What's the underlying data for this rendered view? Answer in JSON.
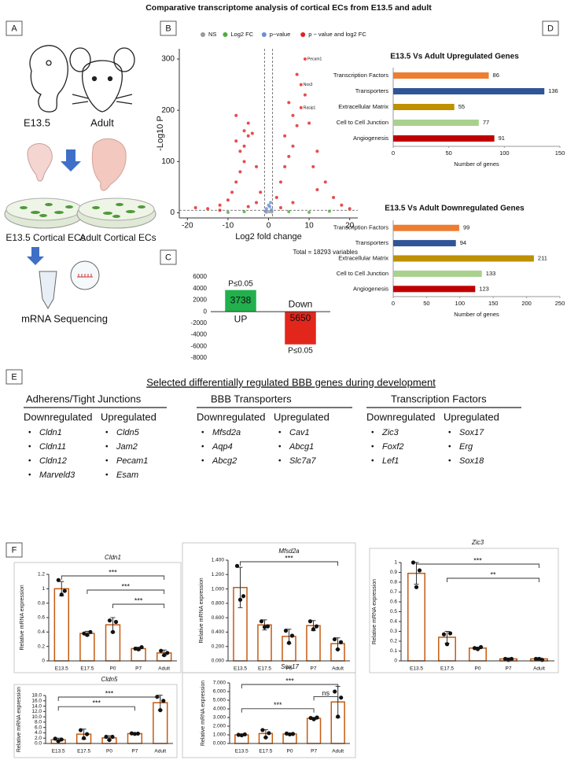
{
  "title": "Comparative transcriptome analysis of  cortical ECs from E13.5 and adult",
  "panel_labels": [
    "A",
    "B",
    "C",
    "D",
    "E",
    "F"
  ],
  "panel_a": {
    "labels": [
      "E13.5",
      "Adult",
      "E13.5 Cortical ECs",
      "Adult Cortical ECs",
      "mRNA Sequencing"
    ]
  },
  "panel_e": {
    "title": "Selected differentially regulated BBB genes during development",
    "groups": [
      {
        "heading": "Adherens/Tight Junctions",
        "down_label": "Downregulated",
        "up_label": "Upregulated",
        "down": [
          "Cldn1",
          "Cldn11",
          "Cldn12",
          "Marveld3"
        ],
        "up": [
          "Cldn5",
          "Jam2",
          "Pecam1",
          "Esam"
        ]
      },
      {
        "heading": "BBB Transporters",
        "down_label": "Downregulated",
        "up_label": "Upregulated",
        "down": [
          "Mfsd2a",
          "Aqp4",
          "Abcg2"
        ],
        "up": [
          "Cav1",
          "Abcg1",
          "Slc7a7"
        ]
      },
      {
        "heading": "Transcription Factors",
        "down_label": "Downregulated",
        "up_label": "Upregulated",
        "down": [
          "Zic3",
          "Foxf2",
          "Lef1"
        ],
        "up": [
          "Sox17",
          "Erg",
          "Sox18"
        ]
      }
    ]
  },
  "chart_data": [
    {
      "type": "scatter",
      "xlabel": "Log2 fold change",
      "ylabel": "-Log10 P",
      "footnote": "Total = 18293 variables",
      "xlim": [
        -22,
        22
      ],
      "xticks": [
        -20,
        -10,
        0,
        10,
        20
      ],
      "ylim": [
        -10,
        320
      ],
      "yticks": [
        0,
        100,
        200,
        300
      ],
      "vlines": [
        -1,
        1
      ],
      "hline": 5,
      "series": [
        {
          "name": "NS",
          "color": "#999999",
          "x": [
            -0.5,
            0.2,
            0.8
          ],
          "y": [
            1,
            2,
            1.5
          ]
        },
        {
          "name": "Log2 FC",
          "color": "#4cae3a",
          "x": [
            -6,
            -10,
            5,
            10,
            15
          ],
          "y": [
            2,
            1,
            2,
            1,
            3
          ]
        },
        {
          "name": "p−value",
          "color": "#6a8fd6",
          "x": [
            -0.8,
            -0.5,
            0.3,
            0.7,
            0,
            0.5
          ],
          "y": [
            3,
            8,
            12,
            6,
            15,
            20
          ]
        },
        {
          "name": "p − value and log2 FC",
          "color": "#e02020",
          "x": [
            -18,
            -15,
            -12,
            -10,
            -9,
            -8,
            -7,
            -6,
            -7,
            -6,
            -8,
            -5,
            -6,
            -5,
            -8,
            -4,
            -3,
            -2,
            -3,
            -5,
            -12,
            2,
            3,
            4,
            5,
            6,
            4,
            7,
            6,
            8,
            5,
            9,
            8,
            7,
            9,
            10,
            12,
            11,
            14,
            16,
            18,
            20,
            3,
            6,
            12
          ],
          "y": [
            10,
            8,
            15,
            25,
            40,
            60,
            80,
            100,
            120,
            130,
            140,
            150,
            160,
            175,
            190,
            155,
            90,
            40,
            20,
            12,
            5,
            30,
            60,
            90,
            110,
            130,
            150,
            170,
            190,
            205,
            215,
            230,
            250,
            270,
            300,
            175,
            120,
            90,
            60,
            30,
            15,
            8,
            10,
            20,
            45
          ]
        }
      ],
      "annotations": [
        {
          "text": "Pecam1",
          "x": 9,
          "y": 300
        },
        {
          "text": "Nos3",
          "x": 8,
          "y": 250
        },
        {
          "text": "Rasip1",
          "x": 8,
          "y": 205
        }
      ]
    },
    {
      "type": "bar",
      "categories": [
        "UP",
        "Down"
      ],
      "values": [
        3738,
        -5650
      ],
      "value_labels": [
        "3738",
        "5650"
      ],
      "colors": [
        "#22b04c",
        "#e3261c"
      ],
      "annotations": [
        "P≤0.05",
        "P≤0.05"
      ],
      "ylim": [
        -8000,
        6000
      ],
      "yticks": [
        -8000,
        -6000,
        -4000,
        -2000,
        0,
        2000,
        4000,
        6000
      ]
    },
    {
      "type": "barh",
      "title": "E13.5 Vs Adult Upregulated Genes",
      "xlabel": "Number of genes",
      "categories": [
        "Transcription Factors",
        "Transporters",
        "Extracellular Matrix",
        "Cell to Cell Junction",
        "Angiogenesis"
      ],
      "values": [
        86,
        136,
        55,
        77,
        91
      ],
      "colors": [
        "#ed7d31",
        "#2f5597",
        "#bf9000",
        "#a9d18e",
        "#c00000"
      ],
      "xlim": [
        0,
        150
      ],
      "xticks": [
        0,
        50,
        100,
        150
      ]
    },
    {
      "type": "barh",
      "title": "E13.5 Vs Adult Downregulated Genes",
      "xlabel": "Number of genes",
      "categories": [
        "Transcription Factors",
        "Transporters",
        "Extracellular Matrix",
        "Cell to Cell Junction",
        "Angiogenesis"
      ],
      "values": [
        99,
        94,
        211,
        133,
        123
      ],
      "colors": [
        "#ed7d31",
        "#2f5597",
        "#bf9000",
        "#a9d18e",
        "#c00000"
      ],
      "xlim": [
        0,
        250
      ],
      "xticks": [
        0,
        50,
        100,
        150,
        200,
        250
      ]
    },
    {
      "type": "bar",
      "title": "Cldn1",
      "ylabel": "Relative mRNA expression",
      "color": "#c55a11",
      "categories": [
        "E13.5",
        "E17.5",
        "P0",
        "P7",
        "Adult"
      ],
      "values": [
        1.0,
        0.38,
        0.5,
        0.17,
        0.11
      ],
      "errors": [
        0.1,
        0.03,
        0.1,
        0.02,
        0.04
      ],
      "points": [
        [
          1.12,
          0.92,
          0.97
        ],
        [
          0.38,
          0.36,
          0.4
        ],
        [
          0.56,
          0.4,
          0.54
        ],
        [
          0.17,
          0.16,
          0.19
        ],
        [
          0.14,
          0.08,
          0.11
        ]
      ],
      "ylim": [
        0,
        1.2
      ],
      "yticks": [
        0,
        0.2,
        0.4,
        0.6,
        0.8,
        1,
        1.2
      ],
      "brackets": [
        {
          "label": "***",
          "from": 0,
          "to": 4
        },
        {
          "label": "***",
          "from": 1,
          "to": 4
        },
        {
          "label": "***",
          "from": 2,
          "to": 4
        }
      ]
    },
    {
      "type": "bar",
      "title": "Mfsd2a",
      "ylabel": "Relative mRNA expression",
      "color": "#c55a11",
      "categories": [
        "E13.5",
        "E17.5",
        "P0",
        "P7",
        "Adult"
      ],
      "values": [
        1.02,
        0.5,
        0.34,
        0.49,
        0.24
      ],
      "errors": [
        0.28,
        0.07,
        0.1,
        0.07,
        0.08
      ],
      "points": [
        [
          1.32,
          0.85,
          0.9
        ],
        [
          0.55,
          0.47,
          0.48
        ],
        [
          0.42,
          0.25,
          0.35
        ],
        [
          0.55,
          0.44,
          0.48
        ],
        [
          0.3,
          0.16,
          0.26
        ]
      ],
      "ylim": [
        0,
        1.4
      ],
      "yticks": [
        {
          "value": 0,
          "label": "0.000"
        },
        {
          "value": 0.2,
          "label": "0.200"
        },
        {
          "value": 0.4,
          "label": "0.400"
        },
        {
          "value": 0.6,
          "label": "0.600"
        },
        {
          "value": 0.8,
          "label": "0.800"
        },
        {
          "value": 1,
          "label": "1.000"
        },
        {
          "value": 1.2,
          "label": "1.200"
        },
        {
          "value": 1.4,
          "label": "1.400"
        }
      ],
      "brackets": [
        {
          "label": "***",
          "from": 0,
          "to": 4
        }
      ]
    },
    {
      "type": "bar",
      "title": "Zic3",
      "ylabel": "Relative mRNA expression",
      "color": "#c55a11",
      "categories": [
        "E13.5",
        "E17.5",
        "P0",
        "P7",
        "Adult"
      ],
      "values": [
        0.89,
        0.24,
        0.13,
        0.02,
        0.02
      ],
      "errors": [
        0.11,
        0.06,
        0.01,
        0.01,
        0.01
      ],
      "points": [
        [
          1.0,
          0.75,
          0.92
        ],
        [
          0.27,
          0.17,
          0.28
        ],
        [
          0.13,
          0.12,
          0.14
        ],
        [
          0.02,
          0.01,
          0.02
        ],
        [
          0.02,
          0.02,
          0.01
        ]
      ],
      "ylim": [
        0,
        1
      ],
      "yticks": [
        0,
        0.1,
        0.2,
        0.3,
        0.4,
        0.5,
        0.6,
        0.7,
        0.8,
        0.9,
        1
      ],
      "brackets": [
        {
          "label": "***",
          "from": 0,
          "to": 4
        },
        {
          "label": "**",
          "from": 1,
          "to": 4
        }
      ]
    },
    {
      "type": "bar",
      "title": "Cldn5",
      "ylabel": "Relative mRNA expression",
      "color": "#c55a11",
      "categories": [
        "E13.5",
        "E17.5",
        "P0",
        "P7",
        "Adult"
      ],
      "values": [
        1.4,
        3.5,
        2.1,
        3.7,
        15.3
      ],
      "errors": [
        0.6,
        1.9,
        0.8,
        0.2,
        2.8
      ],
      "points": [
        [
          1.8,
          0.9,
          1.5
        ],
        [
          5.0,
          2.0,
          3.5
        ],
        [
          2.5,
          1.3,
          2.5
        ],
        [
          3.8,
          3.6,
          3.7
        ],
        [
          17.5,
          12.5,
          16
        ]
      ],
      "ylim": [
        0,
        18
      ],
      "yticks": [
        {
          "value": 0,
          "label": "0.0"
        },
        {
          "value": 2,
          "label": "2.0"
        },
        {
          "value": 4,
          "label": "4.0"
        },
        {
          "value": 6,
          "label": "6.0"
        },
        {
          "value": 8,
          "label": "8.0"
        },
        {
          "value": 10,
          "label": "10.0"
        },
        {
          "value": 12,
          "label": "12.0"
        },
        {
          "value": 14,
          "label": "14.0"
        },
        {
          "value": 16,
          "label": "16.0"
        },
        {
          "value": 18,
          "label": "18.0"
        }
      ],
      "brackets": [
        {
          "label": "***",
          "from": 0,
          "to": 4
        },
        {
          "label": "***",
          "from": 0,
          "to": 3
        }
      ]
    },
    {
      "type": "bar",
      "title": "Sox17",
      "ylabel": "Relative mRNA expression",
      "color": "#c55a11",
      "categories": [
        "E13.5",
        "E17.5",
        "P0",
        "P7",
        "Adult"
      ],
      "values": [
        1.0,
        1.15,
        1.1,
        2.9,
        4.8
      ],
      "errors": [
        0.05,
        0.45,
        0.1,
        0.12,
        1.8
      ],
      "points": [
        [
          1.0,
          0.95,
          1.05
        ],
        [
          1.55,
          0.7,
          1.2
        ],
        [
          1.15,
          1.05,
          1.1
        ],
        [
          2.95,
          2.8,
          3.0
        ],
        [
          6.0,
          3.1,
          5.3
        ]
      ],
      "ylim": [
        0,
        7
      ],
      "yticks": [
        {
          "value": 0,
          "label": "0.000"
        },
        {
          "value": 1,
          "label": "1.000"
        },
        {
          "value": 2,
          "label": "2.000"
        },
        {
          "value": 3,
          "label": "3.000"
        },
        {
          "value": 4,
          "label": "4.000"
        },
        {
          "value": 5,
          "label": "5.000"
        },
        {
          "value": 6,
          "label": "6.000"
        },
        {
          "value": 7,
          "label": "7.000"
        }
      ],
      "brackets": [
        {
          "label": "***",
          "from": 0,
          "to": 4
        },
        {
          "label": "ns",
          "from": 3,
          "to": 4
        },
        {
          "label": "***",
          "from": 0,
          "to": 3
        }
      ]
    }
  ]
}
